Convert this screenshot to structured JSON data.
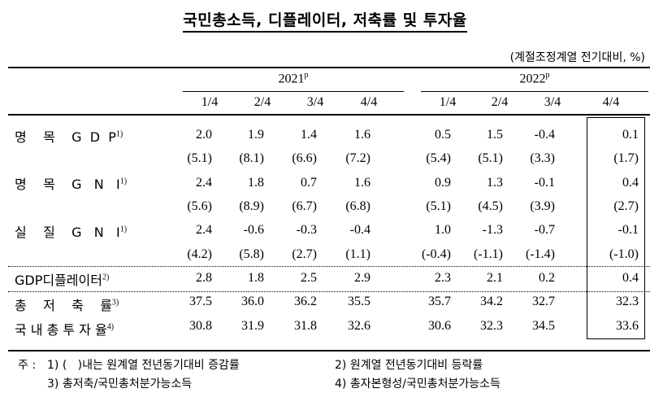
{
  "title": "국민총소득, 디플레이터, 저축률 및 투자율",
  "unit": "(계절조정계열 전기대비, %)",
  "header": {
    "years": [
      {
        "label": "2021",
        "sup": "p"
      },
      {
        "label": "2022",
        "sup": "p"
      }
    ],
    "quarters": [
      "1/4",
      "2/4",
      "3/4",
      "4/4",
      "1/4",
      "2/4",
      "3/4",
      "4/4"
    ]
  },
  "rows": [
    {
      "label": "명    목    G  D  P",
      "note": "1)",
      "values": [
        "2.0",
        "1.9",
        "1.4",
        "1.6",
        "0.5",
        "1.5",
        "-0.4",
        "0.1"
      ]
    },
    {
      "label": "",
      "note": "",
      "values": [
        "(5.1)",
        "(8.1)",
        "(6.6)",
        "(7.2)",
        "(5.4)",
        "(5.1)",
        "(3.3)",
        "(1.7)"
      ]
    },
    {
      "label": "명    목    G   N   I",
      "note": "1)",
      "values": [
        "2.4",
        "1.8",
        "0.7",
        "1.6",
        "0.9",
        "1.3",
        "-0.1",
        "0.4"
      ]
    },
    {
      "label": "",
      "note": "",
      "values": [
        "(5.6)",
        "(8.9)",
        "(6.7)",
        "(6.8)",
        "(5.1)",
        "(4.5)",
        "(3.9)",
        "(2.7)"
      ]
    },
    {
      "label": "실    질    G   N   I",
      "note": "1)",
      "values": [
        "2.4",
        "-0.6",
        "-0.3",
        "-0.4",
        "1.0",
        "-1.3",
        "-0.7",
        "-0.1"
      ]
    },
    {
      "label": "",
      "note": "",
      "values": [
        "(4.2)",
        "(5.8)",
        "(2.7)",
        "(1.1)",
        "(-0.4)",
        "(-1.1)",
        "(-1.4)",
        "(-1.0)"
      ]
    },
    {
      "label": "GDP디플레이터",
      "note": "2)",
      "values": [
        "2.8",
        "1.8",
        "2.5",
        "2.9",
        "2.3",
        "2.1",
        "0.2",
        "0.4"
      ]
    },
    {
      "label": "총    저    축    률",
      "note": "3)",
      "values": [
        "37.5",
        "36.0",
        "36.2",
        "35.5",
        "35.7",
        "34.2",
        "32.7",
        "32.3"
      ]
    },
    {
      "label": "국 내 총 투 자 율",
      "note": "4)",
      "values": [
        "30.8",
        "31.9",
        "31.8",
        "32.6",
        "30.6",
        "32.3",
        "34.5",
        "33.6"
      ]
    }
  ],
  "notes": {
    "prefix": "주 :",
    "n1": "1) (   )내는 원계열 전년동기대비 증감률",
    "n2": "2) 원계열 전년동기대비 등락률",
    "n3": "3) 총저축/국민총처분가능소득",
    "n4": "4) 총자본형성/국민총처분가능소득"
  }
}
